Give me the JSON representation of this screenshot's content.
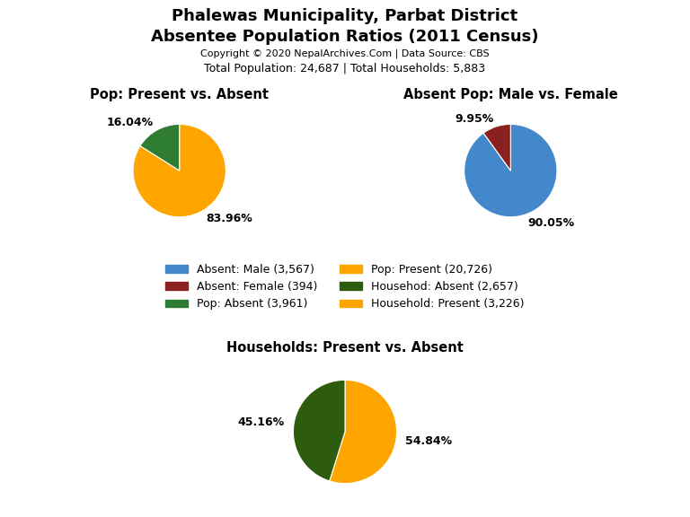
{
  "title": "Phalewas Municipality, Parbat District",
  "subtitle": "Absentee Population Ratios (2011 Census)",
  "annotations": [
    "Copyright © 2020 NepalArchives.Com | Data Source: CBS",
    "Total Population: 24,687 | Total Households: 5,883"
  ],
  "legend_entries": [
    {
      "name": "Absent: Male (3,567)",
      "color": "#4488CC"
    },
    {
      "name": "Absent: Female (394)",
      "color": "#8B2020"
    },
    {
      "name": "Pop: Absent (3,961)",
      "color": "#2E7D32"
    },
    {
      "name": "Pop: Present (20,726)",
      "color": "#FFA500"
    },
    {
      "name": "Househod: Absent (2,657)",
      "color": "#2E5C0E"
    },
    {
      "name": "Household: Present (3,226)",
      "color": "#FFA500"
    }
  ],
  "chart_data": [
    {
      "type": "pie",
      "title": "Pop: Present vs. Absent",
      "values": [
        83.96,
        16.04
      ],
      "value_labels": [
        "83.96%",
        "16.04%"
      ],
      "colors": [
        "#FFA500",
        "#2E7D32"
      ],
      "data_labels": true
    },
    {
      "type": "pie",
      "title": "Absent Pop: Male vs. Female",
      "values": [
        90.05,
        9.95
      ],
      "value_labels": [
        "90.05%",
        "9.95%"
      ],
      "colors": [
        "#4488CC",
        "#8B2020"
      ],
      "data_labels": true
    },
    {
      "type": "pie",
      "title": "Households: Present vs. Absent",
      "values": [
        54.84,
        45.16
      ],
      "value_labels": [
        "54.84%",
        "45.16%"
      ],
      "colors": [
        "#FFA500",
        "#2E5C0E"
      ],
      "data_labels": true
    }
  ]
}
